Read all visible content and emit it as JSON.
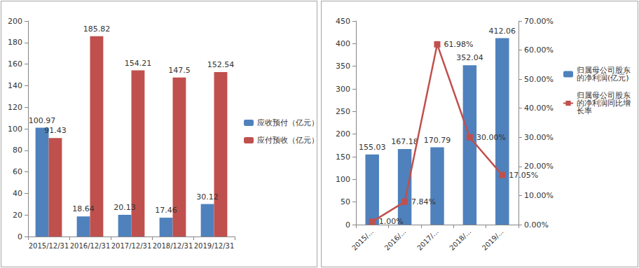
{
  "chart_data": [
    {
      "type": "bar",
      "categories": [
        "2015/12/31",
        "2016/12/31",
        "2017/12/31",
        "2018/12/31",
        "2019/12/31"
      ],
      "series": [
        {
          "name": "应收预付（亿元）",
          "color": "#4F81BD",
          "values": [
            100.97,
            18.64,
            20.13,
            17.46,
            30.12
          ]
        },
        {
          "name": "应付预收（亿元）",
          "color": "#C0504D",
          "values": [
            91.43,
            185.82,
            154.21,
            147.5,
            152.54
          ]
        }
      ],
      "ylim": [
        0,
        200
      ],
      "yticks": [
        0,
        20,
        40,
        60,
        80,
        100,
        120,
        140,
        160,
        180,
        200
      ],
      "grid": false,
      "legend": "right",
      "data_labels": true
    },
    {
      "type": "bar",
      "categories": [
        "2015/...",
        "2016/...",
        "2017/...",
        "2018/...",
        "2019/..."
      ],
      "series": [
        {
          "name": "归属母公司股东的净利润(亿元)",
          "type": "bar",
          "color": "#4F81BD",
          "values": [
            155.03,
            167.18,
            170.79,
            352.04,
            412.06
          ]
        },
        {
          "name": "归属母公司股东的净利润同比增长率",
          "type": "line",
          "axis": "y2",
          "color": "#C0504D",
          "marker": "rect",
          "values": [
            1.0,
            7.84,
            61.98,
            30.0,
            17.05
          ],
          "value_labels": [
            "1.00%",
            "7.84%",
            "61.98%",
            "30.00%",
            "17.05%"
          ]
        }
      ],
      "ylim": [
        0,
        450
      ],
      "yticks": [
        0,
        50,
        100,
        150,
        200,
        250,
        300,
        350,
        400,
        450
      ],
      "y2lim": [
        0,
        70
      ],
      "y2ticks": [
        {
          "value": 0,
          "label": "0.00%"
        },
        {
          "value": 10,
          "label": "10.00%"
        },
        {
          "value": 20,
          "label": "20.00%"
        },
        {
          "value": 30,
          "label": "30.00%"
        },
        {
          "value": 40,
          "label": "40.00%"
        },
        {
          "value": 50,
          "label": "50.00%"
        },
        {
          "value": 60,
          "label": "60.00%"
        },
        {
          "value": 70,
          "label": "70.00%"
        }
      ],
      "grid": false,
      "legend": "right",
      "data_labels": true
    }
  ]
}
